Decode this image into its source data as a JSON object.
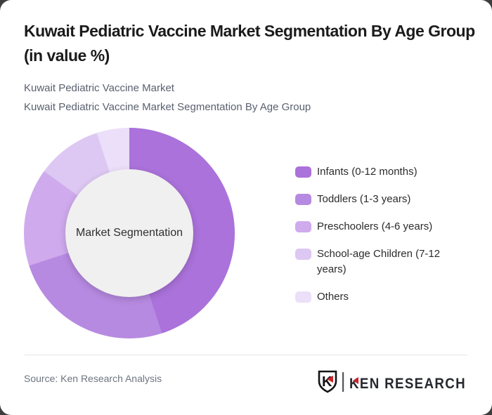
{
  "page": {
    "background_color": "#3d3d3d",
    "card_color": "#ffffff"
  },
  "header": {
    "title": "Kuwait Pediatric Vaccine Market Segmentation By Age Group (in value %)",
    "subtitle_line1": "Kuwait Pediatric Vaccine Market",
    "subtitle_line2": "Kuwait Pediatric Vaccine Market Segmentation By Age Group"
  },
  "chart_data": {
    "type": "pie",
    "variant": "donut",
    "title": "Kuwait Pediatric Vaccine Market Segmentation By Age Group (in value %)",
    "center_label": "Market Segmentation",
    "categories": [
      "Infants (0-12 months)",
      "Toddlers (1-3 years)",
      "Preschoolers (4-6 years)",
      "School-age Children (7-12 years)",
      "Others"
    ],
    "values": [
      45,
      25,
      15,
      10,
      5
    ],
    "unit": "%",
    "colors": [
      "#aa72da",
      "#b78ae1",
      "#cfaaed",
      "#ddc7f3",
      "#ebdff9"
    ],
    "start_angle_deg": 0,
    "direction": "clockwise",
    "legend_position": "right",
    "hole_color": "#f0f0f0",
    "grid": false
  },
  "footer": {
    "source": "Source: Ken Research Analysis",
    "logo": {
      "brand": "KEN RESEARCH",
      "mark_letter": "K",
      "accent_color": "#c9252c",
      "text_color": "#26292e"
    }
  }
}
